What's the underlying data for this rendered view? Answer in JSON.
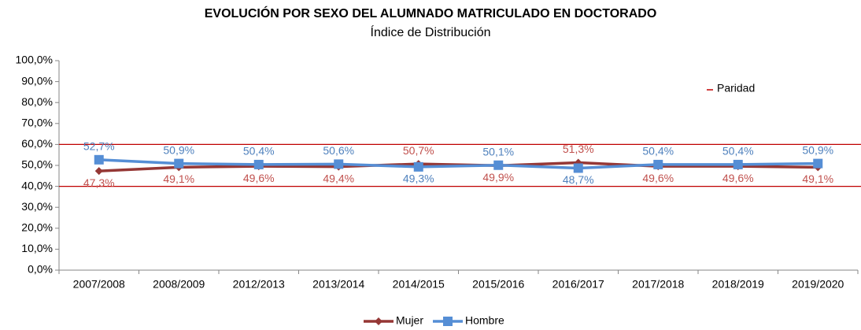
{
  "chart_data": {
    "type": "line",
    "title": "EVOLUCIÓN POR SEXO DEL ALUMNADO MATRICULADO EN DOCTORADO",
    "subtitle": "Índice de Distribución",
    "categories": [
      "2007/2008",
      "2008/2009",
      "2012/2013",
      "2013/2014",
      "2014/2015",
      "2015/2016",
      "2016/2017",
      "2017/2018",
      "2018/2019",
      "2019/2020"
    ],
    "series": [
      {
        "name": "Mujer",
        "color": "#953735",
        "label_color": "#c0504d",
        "marker": "diamond",
        "values": [
          47.3,
          49.1,
          49.6,
          49.4,
          50.7,
          49.9,
          51.3,
          49.6,
          49.6,
          49.1
        ],
        "value_labels": [
          "47,3%",
          "49,1%",
          "49,6%",
          "49,4%",
          "50,7%",
          "49,9%",
          "51,3%",
          "49,6%",
          "49,6%",
          "49,1%"
        ]
      },
      {
        "name": "Hombre",
        "color": "#558ed5",
        "label_color": "#4f81bd",
        "marker": "square",
        "values": [
          52.7,
          50.9,
          50.4,
          50.6,
          49.3,
          50.1,
          48.7,
          50.4,
          50.4,
          50.9
        ],
        "value_labels": [
          "52,7%",
          "50,9%",
          "50,4%",
          "50,6%",
          "49,3%",
          "50,1%",
          "48,7%",
          "50,4%",
          "50,4%",
          "50,9%"
        ]
      }
    ],
    "parity": {
      "name": "Paridad",
      "color": "#c00000",
      "values": [
        40,
        60
      ]
    },
    "ylim": [
      0,
      100
    ],
    "yticks": [
      {
        "value": 0,
        "label": "0,0%"
      },
      {
        "value": 10,
        "label": "10,0%"
      },
      {
        "value": 20,
        "label": "20,0%"
      },
      {
        "value": 30,
        "label": "30,0%"
      },
      {
        "value": 40,
        "label": "40,0%"
      },
      {
        "value": 50,
        "label": "50,0%"
      },
      {
        "value": 60,
        "label": "60,0%"
      },
      {
        "value": 70,
        "label": "70,0%"
      },
      {
        "value": 80,
        "label": "80,0%"
      },
      {
        "value": 90,
        "label": "90,0%"
      },
      {
        "value": 100,
        "label": "100,0%"
      }
    ]
  }
}
